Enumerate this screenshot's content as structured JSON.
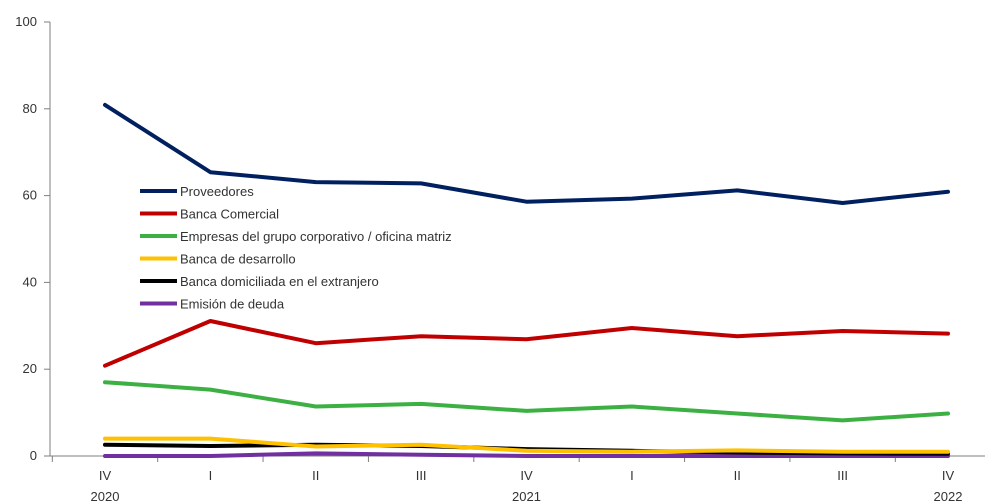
{
  "chart_data": {
    "type": "line",
    "title": "",
    "xlabel": "",
    "ylabel": "",
    "ylim": [
      0,
      100
    ],
    "yticks": [
      0,
      20,
      40,
      60,
      80,
      100
    ],
    "categories": [
      "IV",
      "I",
      "II",
      "III",
      "IV",
      "I",
      "II",
      "III",
      "IV"
    ],
    "year_labels": [
      {
        "index": 0,
        "label": "2020"
      },
      {
        "index": 4,
        "label": "2021"
      },
      {
        "index": 8,
        "label": "2022"
      }
    ],
    "grid": false,
    "legend_position": "center-left",
    "series": [
      {
        "name": "Proveedores",
        "color": "#002060",
        "values": [
          80.9,
          65.4,
          63.1,
          62.8,
          58.6,
          59.3,
          61.2,
          58.3,
          60.9
        ]
      },
      {
        "name": "Banca Comercial",
        "color": "#C00000",
        "values": [
          20.8,
          31.1,
          26.0,
          27.6,
          26.9,
          29.5,
          27.6,
          28.8,
          28.2
        ]
      },
      {
        "name": "Empresas del grupo corporativo / oficina matriz",
        "color": "#3CB043",
        "values": [
          17.0,
          15.3,
          11.4,
          12.0,
          10.4,
          11.4,
          9.8,
          8.2,
          9.8
        ]
      },
      {
        "name": "Banca de desarrollo",
        "color": "#FFC000",
        "values": [
          4.0,
          4.0,
          2.2,
          2.6,
          1.2,
          1.0,
          1.3,
          1.0,
          1.0
        ]
      },
      {
        "name": "Banca domiciliada en el extranjero",
        "color": "#000000",
        "values": [
          2.6,
          2.3,
          2.6,
          2.3,
          1.6,
          1.2,
          0.8,
          0.6,
          0.5
        ]
      },
      {
        "name": "Emisión de deuda",
        "color": "#7030A0",
        "values": [
          0.0,
          0.0,
          0.6,
          0.3,
          0.0,
          0.0,
          0.0,
          0.0,
          0.0
        ]
      }
    ]
  }
}
